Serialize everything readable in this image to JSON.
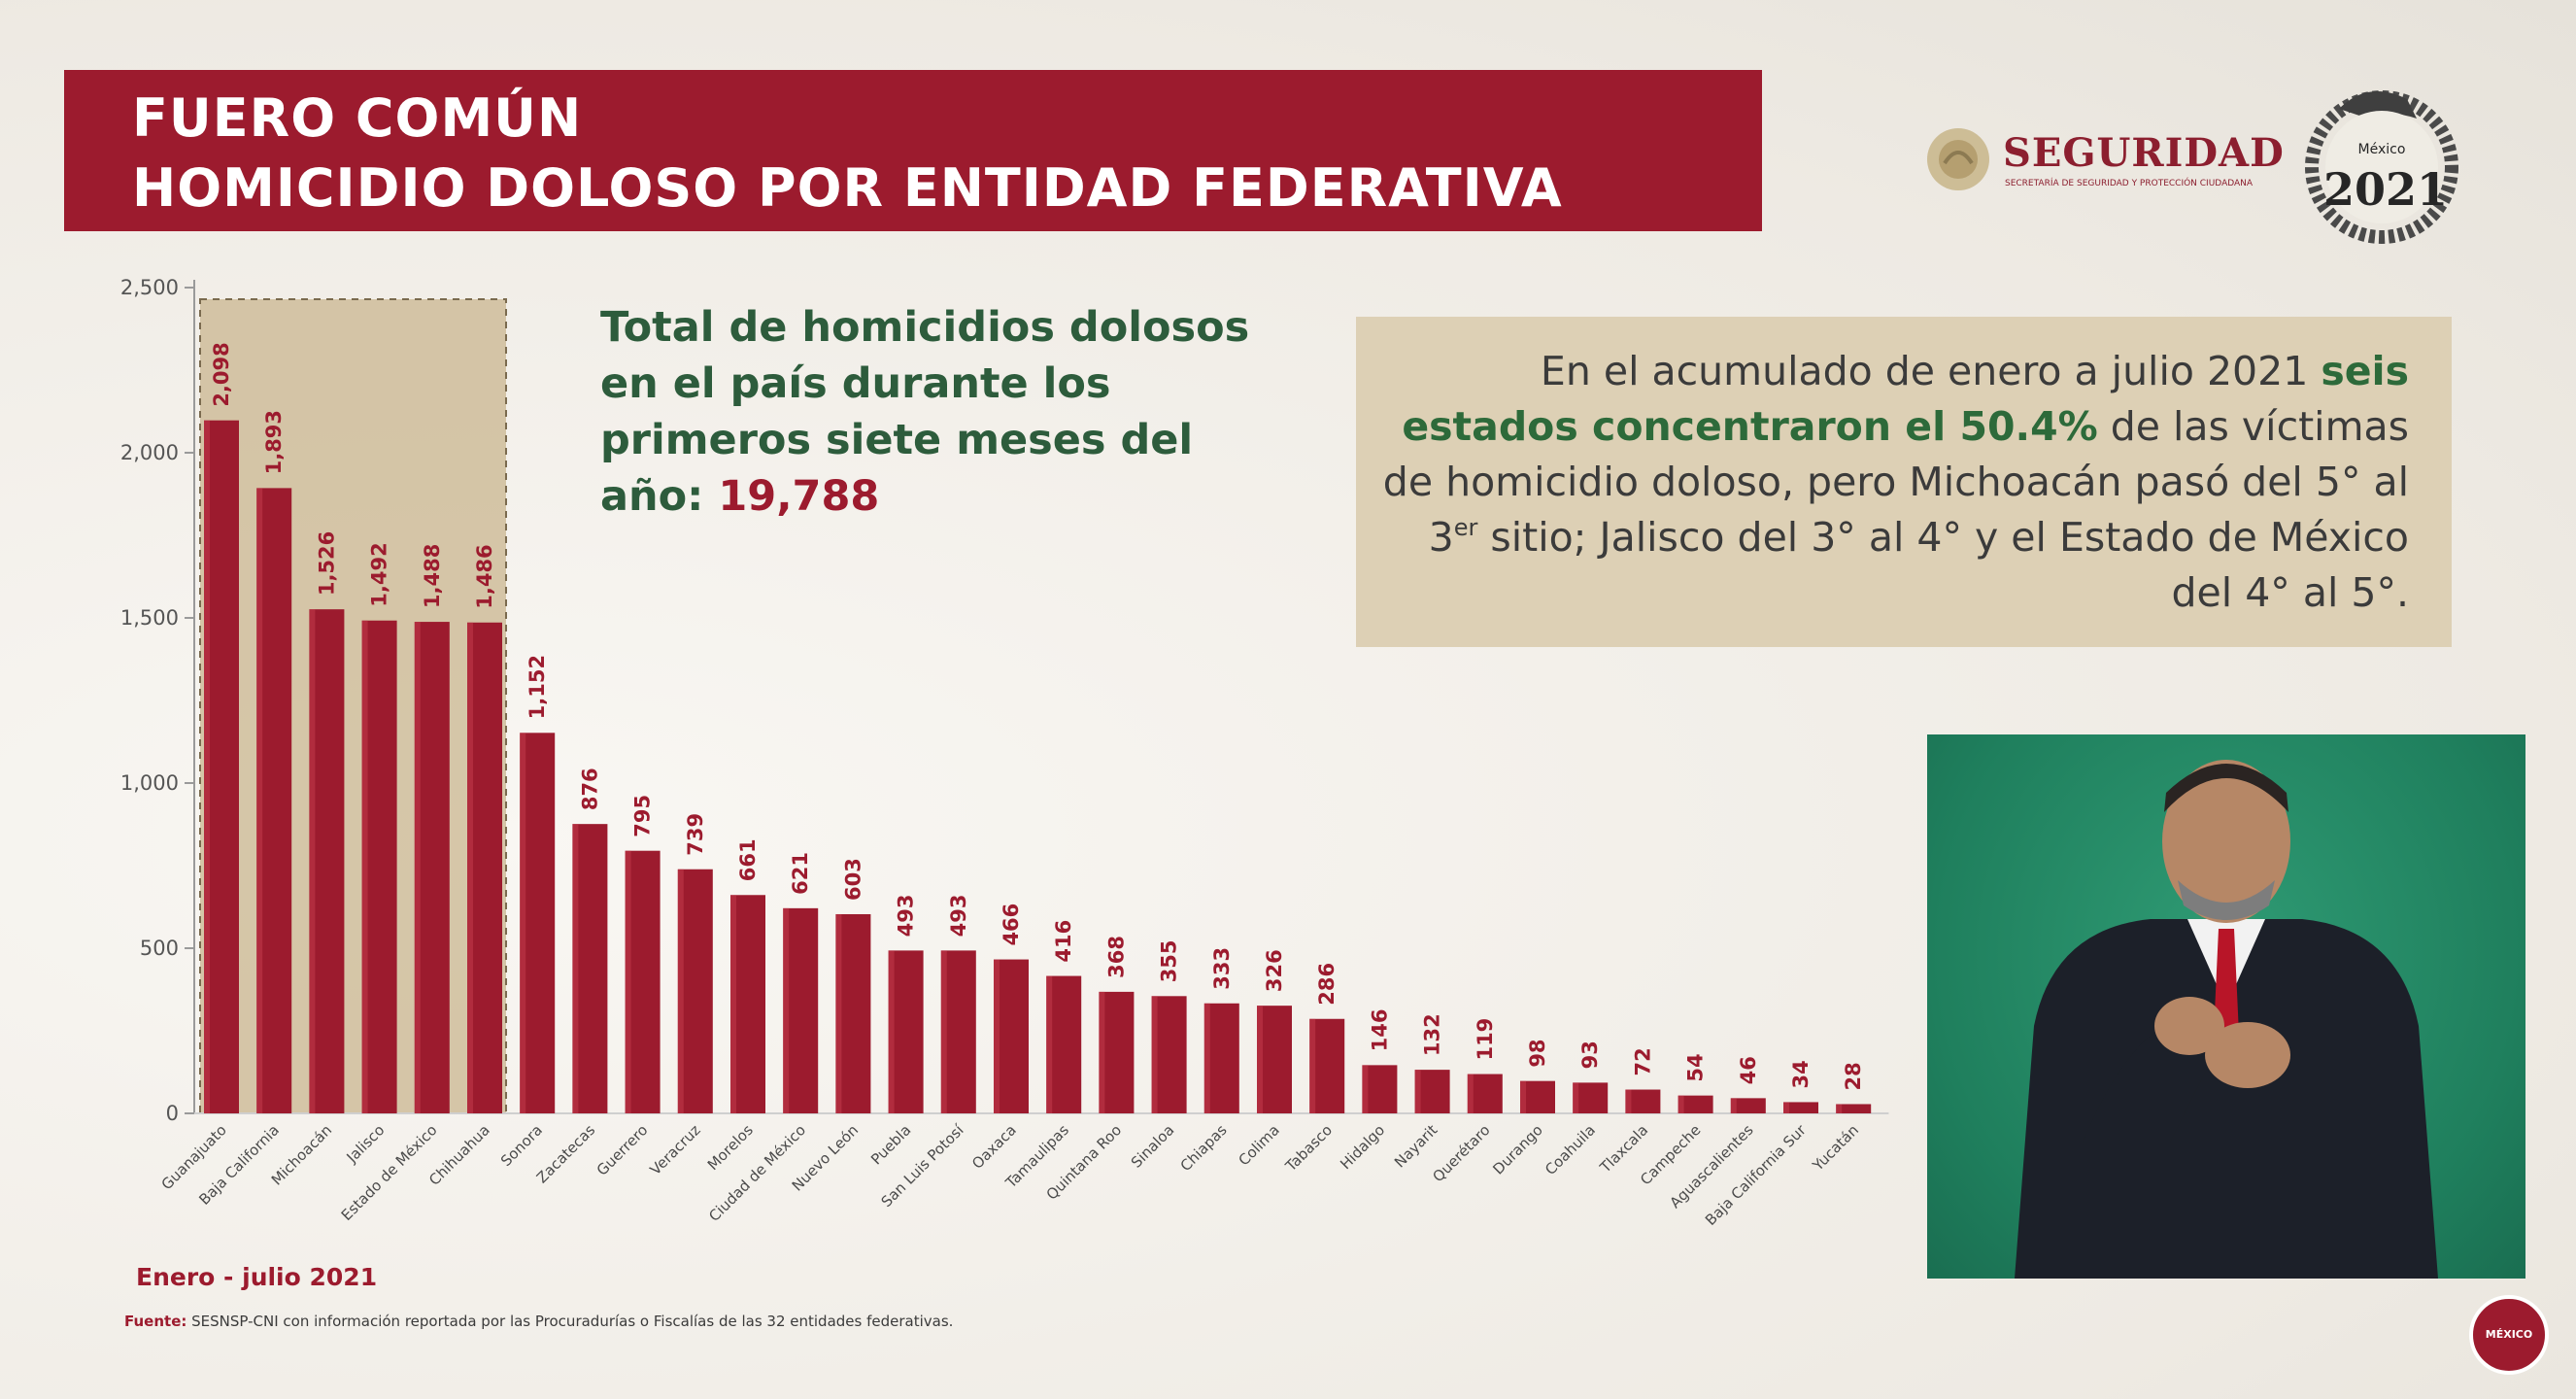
{
  "header": {
    "title_line1": "FUERO COMÚN",
    "title_line2": "HOMICIDIO DOLOSO POR ENTIDAD FEDERATIVA"
  },
  "logos": {
    "seguridad": "SEGURIDAD",
    "seguridad_sub": "SECRETARÍA DE SEGURIDAD Y PROTECCIÓN CIUDADANA",
    "mexico_year": "2021",
    "mexico_label": "México"
  },
  "total": {
    "text": "Total de homicidios dolosos en el país durante los primeros siete meses del año:",
    "value": "19,788"
  },
  "info": {
    "part1": "En el acumulado de enero a julio 2021 ",
    "highlight": "seis estados concentraron el 50.4%",
    "part2": " de las víctimas de homicidio doloso, pero Michoacán pasó del 5° al 3",
    "sup": "er",
    "part3": " sitio; Jalisco del 3° al 4° y el Estado de México del 4° al 5°."
  },
  "footer": {
    "period": "Enero - julio 2021",
    "source_label": "Fuente:",
    "source_text": " SESNSP-CNI con información reportada por las Procuradurías o Fiscalías de las 32 entidades federativas.",
    "badge": "MÉXICO"
  },
  "colors": {
    "bar": "#9c1b2e",
    "title_bg": "#9c1b2e",
    "highlight_green": "#2d6a3a",
    "info_bg": "#ddd0b5",
    "top6_box": "#c9b58f"
  },
  "chart_data": {
    "type": "bar",
    "categories": [
      "Guanajuato",
      "Baja California",
      "Michoacán",
      "Jalisco",
      "Estado de México",
      "Chihuahua",
      "Sonora",
      "Zacatecas",
      "Guerrero",
      "Veracruz",
      "Morelos",
      "Ciudad de México",
      "Nuevo León",
      "Puebla",
      "San Luis Potosí",
      "Oaxaca",
      "Tamaulipas",
      "Quintana Roo",
      "Sinaloa",
      "Chiapas",
      "Colima",
      "Tabasco",
      "Hidalgo",
      "Nayarit",
      "Querétaro",
      "Durango",
      "Coahuila",
      "Tlaxcala",
      "Campeche",
      "Aguascalientes",
      "Baja California Sur",
      "Yucatán"
    ],
    "values": [
      2098,
      1893,
      1526,
      1492,
      1488,
      1486,
      1152,
      876,
      795,
      739,
      661,
      621,
      603,
      493,
      493,
      466,
      416,
      368,
      355,
      333,
      326,
      286,
      146,
      132,
      119,
      98,
      93,
      72,
      54,
      46,
      34,
      28
    ],
    "labels": [
      "2,098",
      "1,893",
      "1,526",
      "1,492",
      "1,488",
      "1,486",
      "1,152",
      "876",
      "795",
      "739",
      "661",
      "621",
      "603",
      "493",
      "493",
      "466",
      "416",
      "368",
      "355",
      "333",
      "326",
      "286",
      "146",
      "132",
      "119",
      "98",
      "93",
      "72",
      "54",
      "46",
      "34",
      "28"
    ],
    "yticks": [
      "0",
      "500",
      "1,000",
      "1,500",
      "2,000",
      "2,500"
    ],
    "ylim": [
      0,
      2500
    ],
    "highlight_first": 6,
    "grid": false
  }
}
